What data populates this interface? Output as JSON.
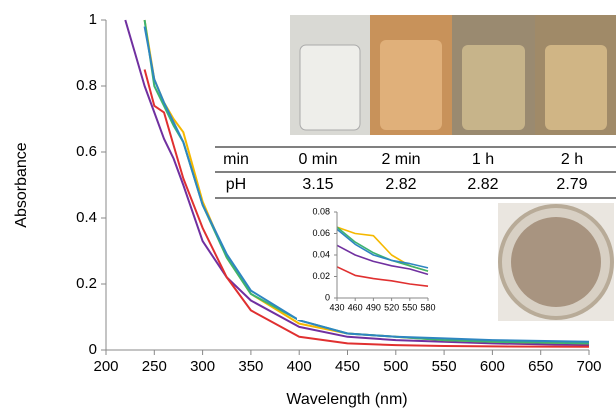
{
  "chart_data": [
    {
      "type": "line",
      "xlabel": "Wavelength (nm)",
      "ylabel": "Absorbance",
      "x": [
        220,
        230,
        240,
        250,
        260,
        270,
        280,
        300,
        325,
        350,
        400,
        450,
        500,
        550,
        600,
        700
      ],
      "xlim": [
        200,
        700
      ],
      "xticks": [
        200,
        250,
        300,
        350,
        400,
        450,
        500,
        550,
        600,
        650,
        700
      ],
      "ylim": [
        0,
        1
      ],
      "yticks": [
        0,
        0.2,
        0.4,
        0.6,
        0.8,
        1
      ],
      "series": [
        {
          "color": "#7030a0",
          "values": [
            1,
            0.9,
            0.8,
            0.72,
            0.64,
            0.58,
            0.5,
            0.33,
            0.22,
            0.15,
            0.07,
            0.04,
            0.03,
            0.025,
            0.02,
            0.015
          ]
        },
        {
          "color": "#e03030",
          "values": [
            null,
            null,
            0.85,
            0.74,
            0.72,
            0.62,
            0.52,
            0.37,
            0.22,
            0.12,
            0.04,
            0.02,
            0.015,
            0.012,
            0.011,
            0.01
          ]
        },
        {
          "color": "#f5b800",
          "values": [
            null,
            null,
            1,
            0.82,
            0.75,
            0.7,
            0.66,
            0.45,
            0.28,
            0.17,
            0.08,
            0.05,
            0.04,
            0.03,
            0.025,
            0.02
          ]
        },
        {
          "color": "#3cb371",
          "values": [
            null,
            null,
            1,
            0.8,
            0.74,
            0.68,
            0.63,
            0.44,
            0.28,
            0.17,
            0.09,
            0.05,
            0.04,
            0.03,
            0.025,
            0.02
          ]
        },
        {
          "color": "#2e86c1",
          "values": [
            null,
            null,
            0.98,
            0.82,
            0.75,
            0.69,
            0.63,
            0.44,
            0.29,
            0.18,
            0.09,
            0.05,
            0.04,
            0.035,
            0.03,
            0.025
          ]
        }
      ]
    },
    {
      "type": "line",
      "x": [
        430,
        460,
        490,
        520,
        550,
        580
      ],
      "xlim": [
        430,
        580
      ],
      "xticks": [
        430,
        460,
        490,
        520,
        550,
        580
      ],
      "ylim": [
        0,
        0.08
      ],
      "yticks": [
        0,
        0.02,
        0.04,
        0.06,
        0.08
      ],
      "series": [
        {
          "color": "#7030a0",
          "values": [
            0.049,
            0.04,
            0.034,
            0.03,
            0.027,
            0.022
          ]
        },
        {
          "color": "#e03030",
          "values": [
            0.029,
            0.021,
            0.018,
            0.016,
            0.013,
            0.011
          ]
        },
        {
          "color": "#f5b800",
          "values": [
            0.066,
            0.06,
            0.058,
            0.04,
            0.03,
            0.025
          ]
        },
        {
          "color": "#3cb371",
          "values": [
            0.066,
            0.052,
            0.042,
            0.035,
            0.03,
            0.025
          ]
        },
        {
          "color": "#2e86c1",
          "values": [
            0.064,
            0.05,
            0.04,
            0.035,
            0.032,
            0.028
          ]
        }
      ]
    }
  ],
  "table": {
    "rows": [
      [
        "min",
        "0 min",
        "2 min",
        "1 h",
        "2 h"
      ],
      [
        "pH",
        "3.15",
        "2.82",
        "2.82",
        "2.79"
      ]
    ]
  }
}
